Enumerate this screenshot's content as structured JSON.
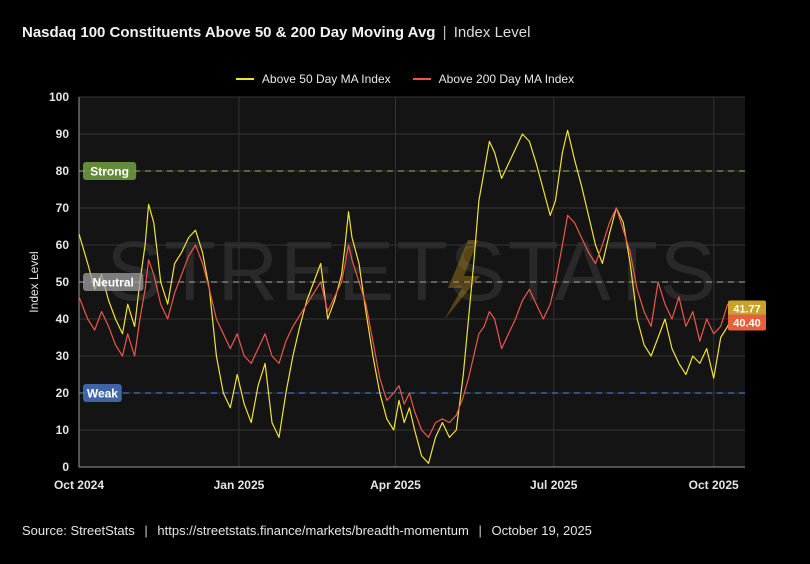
{
  "header": {
    "title": "Nasdaq 100 Constituents Above 50 & 200 Day Moving Avg",
    "separator": "|",
    "subtitle": "Index Level"
  },
  "watermark": "STREETSTATS",
  "footer": {
    "source_label": "Source:",
    "source_name": "StreetStats",
    "separator": "|",
    "url": "https://streetstats.finance/markets/breadth-momentum",
    "date": "October 19, 2025"
  },
  "colors": {
    "background": "#000000",
    "plot_background": "#141414",
    "grid": "#333333",
    "axis": "#9a9a9a",
    "series_50": "#f2e233",
    "series_200": "#f0554a",
    "strong": "#7fb347",
    "neutral": "#a0a0a0",
    "weak": "#4d7fd9",
    "badge_50": "#c9a227",
    "badge_200": "#e8603a"
  },
  "chart_data": {
    "type": "line",
    "title": "Nasdaq 100 Constituents Above 50 & 200 Day Moving Avg",
    "ylabel": "Index Level",
    "xlabel": "",
    "ylim": [
      0,
      100
    ],
    "y_ticks": [
      0,
      10,
      20,
      30,
      40,
      50,
      60,
      70,
      80,
      90,
      100
    ],
    "x_range": [
      "2024-10-01",
      "2025-10-19"
    ],
    "x_ticks": [
      {
        "date": "2024-10-01",
        "label": "Oct 2024"
      },
      {
        "date": "2025-01-01",
        "label": "Jan 2025"
      },
      {
        "date": "2025-04-01",
        "label": "Apr 2025"
      },
      {
        "date": "2025-07-01",
        "label": "Jul 2025"
      },
      {
        "date": "2025-10-01",
        "label": "Oct 2025"
      }
    ],
    "grid": true,
    "legend_position": "top-center",
    "reference_lines": [
      {
        "name": "Strong",
        "value": 80,
        "color": "#7fb347"
      },
      {
        "name": "Neutral",
        "value": 50,
        "color": "#a0a0a0"
      },
      {
        "name": "Weak",
        "value": 20,
        "color": "#4d7fd9"
      }
    ],
    "last_value_labels": [
      "41.77",
      "40.40"
    ],
    "series": [
      {
        "name": "Above 50 Day MA Index",
        "color": "#f2e233",
        "points": [
          [
            "2024-10-01",
            63
          ],
          [
            "2024-10-06",
            55
          ],
          [
            "2024-10-10",
            48
          ],
          [
            "2024-10-14",
            52
          ],
          [
            "2024-10-18",
            45
          ],
          [
            "2024-10-22",
            40
          ],
          [
            "2024-10-26",
            36
          ],
          [
            "2024-10-29",
            44
          ],
          [
            "2024-11-02",
            38
          ],
          [
            "2024-11-05",
            50
          ],
          [
            "2024-11-08",
            60
          ],
          [
            "2024-11-10",
            71
          ],
          [
            "2024-11-13",
            66
          ],
          [
            "2024-11-17",
            50
          ],
          [
            "2024-11-21",
            44
          ],
          [
            "2024-11-25",
            55
          ],
          [
            "2024-11-29",
            58
          ],
          [
            "2024-12-03",
            62
          ],
          [
            "2024-12-07",
            64
          ],
          [
            "2024-12-11",
            58
          ],
          [
            "2024-12-15",
            48
          ],
          [
            "2024-12-19",
            30
          ],
          [
            "2024-12-23",
            20
          ],
          [
            "2024-12-27",
            16
          ],
          [
            "2024-12-31",
            25
          ],
          [
            "2025-01-04",
            17
          ],
          [
            "2025-01-08",
            12
          ],
          [
            "2025-01-12",
            22
          ],
          [
            "2025-01-16",
            28
          ],
          [
            "2025-01-20",
            12
          ],
          [
            "2025-01-24",
            8
          ],
          [
            "2025-01-28",
            20
          ],
          [
            "2025-02-01",
            30
          ],
          [
            "2025-02-05",
            38
          ],
          [
            "2025-02-09",
            45
          ],
          [
            "2025-02-13",
            50
          ],
          [
            "2025-02-17",
            55
          ],
          [
            "2025-02-21",
            40
          ],
          [
            "2025-02-25",
            45
          ],
          [
            "2025-03-01",
            52
          ],
          [
            "2025-03-03",
            60
          ],
          [
            "2025-03-05",
            69
          ],
          [
            "2025-03-07",
            62
          ],
          [
            "2025-03-11",
            55
          ],
          [
            "2025-03-15",
            42
          ],
          [
            "2025-03-19",
            30
          ],
          [
            "2025-03-23",
            20
          ],
          [
            "2025-03-27",
            13
          ],
          [
            "2025-03-31",
            10
          ],
          [
            "2025-04-03",
            18
          ],
          [
            "2025-04-06",
            12
          ],
          [
            "2025-04-09",
            16
          ],
          [
            "2025-04-12",
            10
          ],
          [
            "2025-04-16",
            3
          ],
          [
            "2025-04-20",
            1
          ],
          [
            "2025-04-24",
            8
          ],
          [
            "2025-04-28",
            12
          ],
          [
            "2025-05-02",
            8
          ],
          [
            "2025-05-06",
            10
          ],
          [
            "2025-05-10",
            25
          ],
          [
            "2025-05-13",
            40
          ],
          [
            "2025-05-16",
            55
          ],
          [
            "2025-05-19",
            72
          ],
          [
            "2025-05-22",
            80
          ],
          [
            "2025-05-25",
            88
          ],
          [
            "2025-05-28",
            85
          ],
          [
            "2025-06-01",
            78
          ],
          [
            "2025-06-05",
            82
          ],
          [
            "2025-06-09",
            86
          ],
          [
            "2025-06-13",
            90
          ],
          [
            "2025-06-17",
            88
          ],
          [
            "2025-06-21",
            82
          ],
          [
            "2025-06-25",
            75
          ],
          [
            "2025-06-29",
            68
          ],
          [
            "2025-07-02",
            72
          ],
          [
            "2025-07-06",
            85
          ],
          [
            "2025-07-09",
            91
          ],
          [
            "2025-07-13",
            83
          ],
          [
            "2025-07-17",
            76
          ],
          [
            "2025-07-21",
            68
          ],
          [
            "2025-07-25",
            60
          ],
          [
            "2025-07-29",
            55
          ],
          [
            "2025-08-02",
            63
          ],
          [
            "2025-08-06",
            70
          ],
          [
            "2025-08-10",
            66
          ],
          [
            "2025-08-14",
            55
          ],
          [
            "2025-08-18",
            40
          ],
          [
            "2025-08-22",
            33
          ],
          [
            "2025-08-26",
            30
          ],
          [
            "2025-08-30",
            35
          ],
          [
            "2025-09-03",
            40
          ],
          [
            "2025-09-07",
            32
          ],
          [
            "2025-09-11",
            28
          ],
          [
            "2025-09-15",
            25
          ],
          [
            "2025-09-19",
            30
          ],
          [
            "2025-09-23",
            28
          ],
          [
            "2025-09-27",
            32
          ],
          [
            "2025-10-01",
            24
          ],
          [
            "2025-10-05",
            35
          ],
          [
            "2025-10-09",
            38
          ],
          [
            "2025-10-13",
            42
          ],
          [
            "2025-10-16",
            40
          ],
          [
            "2025-10-19",
            41.77
          ]
        ]
      },
      {
        "name": "Above 200 Day MA Index",
        "color": "#f0554a",
        "points": [
          [
            "2024-10-01",
            46
          ],
          [
            "2024-10-06",
            40
          ],
          [
            "2024-10-10",
            37
          ],
          [
            "2024-10-14",
            42
          ],
          [
            "2024-10-18",
            38
          ],
          [
            "2024-10-22",
            33
          ],
          [
            "2024-10-26",
            30
          ],
          [
            "2024-10-29",
            36
          ],
          [
            "2024-11-02",
            30
          ],
          [
            "2024-11-05",
            40
          ],
          [
            "2024-11-08",
            48
          ],
          [
            "2024-11-10",
            56
          ],
          [
            "2024-11-13",
            52
          ],
          [
            "2024-11-17",
            44
          ],
          [
            "2024-11-21",
            40
          ],
          [
            "2024-11-25",
            47
          ],
          [
            "2024-11-29",
            52
          ],
          [
            "2024-12-03",
            57
          ],
          [
            "2024-12-07",
            60
          ],
          [
            "2024-12-11",
            55
          ],
          [
            "2024-12-15",
            48
          ],
          [
            "2024-12-19",
            40
          ],
          [
            "2024-12-23",
            36
          ],
          [
            "2024-12-27",
            32
          ],
          [
            "2024-12-31",
            36
          ],
          [
            "2025-01-04",
            30
          ],
          [
            "2025-01-08",
            28
          ],
          [
            "2025-01-12",
            32
          ],
          [
            "2025-01-16",
            36
          ],
          [
            "2025-01-20",
            30
          ],
          [
            "2025-01-24",
            28
          ],
          [
            "2025-01-28",
            34
          ],
          [
            "2025-02-01",
            38
          ],
          [
            "2025-02-05",
            41
          ],
          [
            "2025-02-09",
            44
          ],
          [
            "2025-02-13",
            47
          ],
          [
            "2025-02-17",
            50
          ],
          [
            "2025-02-21",
            42
          ],
          [
            "2025-02-25",
            46
          ],
          [
            "2025-03-01",
            50
          ],
          [
            "2025-03-03",
            55
          ],
          [
            "2025-03-05",
            60
          ],
          [
            "2025-03-07",
            56
          ],
          [
            "2025-03-11",
            50
          ],
          [
            "2025-03-15",
            44
          ],
          [
            "2025-03-19",
            34
          ],
          [
            "2025-03-23",
            24
          ],
          [
            "2025-03-27",
            18
          ],
          [
            "2025-03-31",
            20
          ],
          [
            "2025-04-03",
            22
          ],
          [
            "2025-04-06",
            17
          ],
          [
            "2025-04-09",
            20
          ],
          [
            "2025-04-12",
            15
          ],
          [
            "2025-04-16",
            10
          ],
          [
            "2025-04-20",
            8
          ],
          [
            "2025-04-24",
            12
          ],
          [
            "2025-04-28",
            13
          ],
          [
            "2025-05-02",
            12
          ],
          [
            "2025-05-06",
            14
          ],
          [
            "2025-05-10",
            19
          ],
          [
            "2025-05-13",
            24
          ],
          [
            "2025-05-16",
            30
          ],
          [
            "2025-05-19",
            36
          ],
          [
            "2025-05-22",
            38
          ],
          [
            "2025-05-25",
            42
          ],
          [
            "2025-05-28",
            40
          ],
          [
            "2025-06-01",
            32
          ],
          [
            "2025-06-05",
            36
          ],
          [
            "2025-06-09",
            40
          ],
          [
            "2025-06-13",
            45
          ],
          [
            "2025-06-17",
            48
          ],
          [
            "2025-06-21",
            44
          ],
          [
            "2025-06-25",
            40
          ],
          [
            "2025-06-29",
            44
          ],
          [
            "2025-07-02",
            50
          ],
          [
            "2025-07-06",
            60
          ],
          [
            "2025-07-09",
            68
          ],
          [
            "2025-07-13",
            66
          ],
          [
            "2025-07-17",
            62
          ],
          [
            "2025-07-21",
            58
          ],
          [
            "2025-07-25",
            55
          ],
          [
            "2025-07-29",
            60
          ],
          [
            "2025-08-02",
            66
          ],
          [
            "2025-08-06",
            70
          ],
          [
            "2025-08-10",
            64
          ],
          [
            "2025-08-14",
            58
          ],
          [
            "2025-08-18",
            48
          ],
          [
            "2025-08-22",
            42
          ],
          [
            "2025-08-26",
            38
          ],
          [
            "2025-08-30",
            50
          ],
          [
            "2025-09-03",
            44
          ],
          [
            "2025-09-07",
            40
          ],
          [
            "2025-09-11",
            46
          ],
          [
            "2025-09-15",
            38
          ],
          [
            "2025-09-19",
            42
          ],
          [
            "2025-09-23",
            34
          ],
          [
            "2025-09-27",
            40
          ],
          [
            "2025-10-01",
            36
          ],
          [
            "2025-10-05",
            38
          ],
          [
            "2025-10-09",
            44
          ],
          [
            "2025-10-13",
            42
          ],
          [
            "2025-10-16",
            40
          ],
          [
            "2025-10-19",
            40.4
          ]
        ]
      }
    ]
  }
}
